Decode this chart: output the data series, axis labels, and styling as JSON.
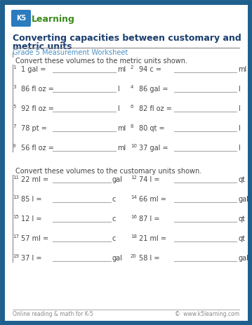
{
  "border_color": "#1e5f8e",
  "bg_color": "#ffffff",
  "logo_bg": "#2b7bbf",
  "title_line1": "Converting capacities between customary and",
  "title_line2": "metric units",
  "subtitle": "Grade 5 Measurement Worksheet",
  "section1_label": "Convert these volumes to the metric units shown.",
  "section2_label": "Convert these volumes to the customary units shown.",
  "problems_section1": [
    [
      "1.",
      "1 gal =",
      "ml",
      "2.",
      "94 c =",
      "ml"
    ],
    [
      "3.",
      "86 fl oz =",
      "l",
      "4.",
      "86 gal =",
      "l"
    ],
    [
      "5.",
      "92 fl oz =",
      "l",
      "6.",
      "82 fl oz =",
      "l"
    ],
    [
      "7.",
      "78 pt =",
      "ml",
      "8.",
      "80 qt =",
      "l"
    ],
    [
      "9.",
      "56 fl oz =",
      "ml",
      "10.",
      "37 gal =",
      "l"
    ]
  ],
  "problems_section2": [
    [
      "11.",
      "22 ml =",
      "gal",
      "12.",
      "74 l =",
      "qt"
    ],
    [
      "13.",
      "85 l =",
      "c",
      "14.",
      "66 ml =",
      "gal"
    ],
    [
      "15.",
      "12 l =",
      "c",
      "16.",
      "87 l =",
      "qt"
    ],
    [
      "17.",
      "57 ml =",
      "c",
      "18.",
      "21 ml =",
      "qt"
    ],
    [
      "19.",
      "37 l =",
      "gal",
      "20.",
      "58 l =",
      "gal"
    ]
  ],
  "footer_left": "Online reading & math for K-5",
  "footer_right": "©  www.k5learning.com",
  "title_color": "#1a3e6e",
  "subtitle_color": "#4a90c4",
  "text_color": "#444444",
  "line_color": "#aaaaaa",
  "divider_color": "#888888"
}
